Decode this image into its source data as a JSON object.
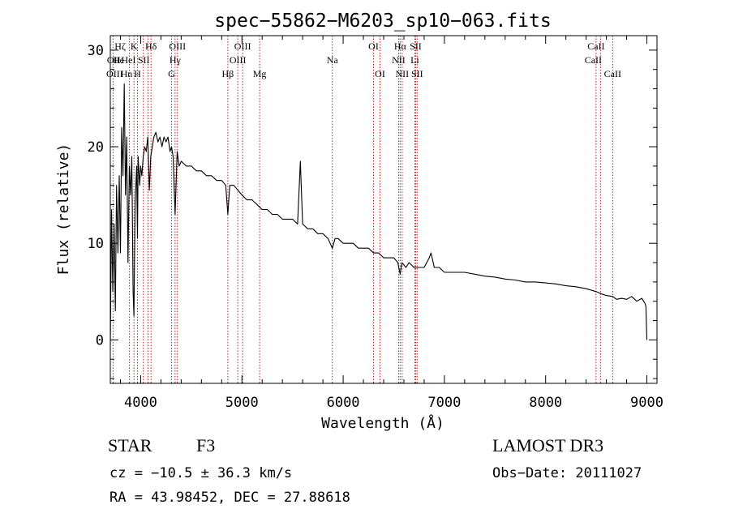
{
  "chart_data": {
    "type": "line",
    "title": "spec−55862−M6203_sp10−063.fits",
    "xlabel": "Wavelength (Å)",
    "ylabel": "Flux (relative)",
    "xlim": [
      3700,
      9100
    ],
    "ylim": [
      -4.5,
      31.5
    ],
    "xticks": [
      4000,
      5000,
      6000,
      7000,
      8000,
      9000
    ],
    "xtick_labels": [
      "4000",
      "5000",
      "6000",
      "7000",
      "8000",
      "9000"
    ],
    "xminor_step": 200,
    "yticks": [
      0,
      10,
      20,
      30
    ],
    "ytick_labels": [
      "0",
      "10",
      "20",
      "30"
    ],
    "yminor_step": 2,
    "grid": false,
    "series": [
      {
        "name": "spectrum",
        "color": "#000000",
        "x": [
          3700,
          3712,
          3725,
          3738,
          3750,
          3762,
          3775,
          3788,
          3800,
          3812,
          3825,
          3838,
          3850,
          3862,
          3875,
          3888,
          3900,
          3912,
          3925,
          3933,
          3945,
          3960,
          3968,
          3975,
          3990,
          4000,
          4012,
          4025,
          4040,
          4055,
          4070,
          4085,
          4100,
          4115,
          4130,
          4150,
          4170,
          4190,
          4210,
          4230,
          4250,
          4270,
          4290,
          4305,
          4320,
          4340,
          4360,
          4380,
          4400,
          4450,
          4500,
          4550,
          4600,
          4650,
          4700,
          4750,
          4800,
          4840,
          4861,
          4880,
          4920,
          4960,
          5000,
          5050,
          5100,
          5150,
          5200,
          5250,
          5300,
          5350,
          5400,
          5450,
          5500,
          5550,
          5577,
          5600,
          5650,
          5700,
          5750,
          5800,
          5850,
          5893,
          5920,
          5950,
          6000,
          6050,
          6100,
          6150,
          6200,
          6250,
          6300,
          6350,
          6400,
          6450,
          6500,
          6540,
          6563,
          6580,
          6620,
          6650,
          6700,
          6750,
          6800,
          6850,
          6868,
          6900,
          6950,
          7000,
          7100,
          7200,
          7300,
          7400,
          7500,
          7600,
          7700,
          7800,
          7900,
          8000,
          8100,
          8200,
          8300,
          8400,
          8500,
          8542,
          8600,
          8662,
          8700,
          8750,
          8800,
          8850,
          8900,
          8950,
          8980,
          8990,
          9000
        ],
        "values": [
          -0.5,
          13.5,
          5,
          12,
          3,
          16,
          9,
          17,
          9,
          22,
          17,
          26.5,
          15,
          21,
          8,
          18,
          15,
          19,
          5,
          2.5,
          14,
          18,
          10.5,
          19,
          16,
          18,
          17,
          19,
          20,
          19.5,
          21,
          15.5,
          19,
          20,
          21,
          21.5,
          20.5,
          21,
          20,
          21,
          20.5,
          21,
          19.5,
          20,
          19,
          13,
          19.5,
          18,
          18.5,
          18,
          18,
          17.5,
          17.5,
          17,
          17,
          16.5,
          16.5,
          16,
          13,
          16,
          16,
          15.5,
          15,
          14.5,
          14.5,
          14,
          13.5,
          13.5,
          13,
          13,
          12.5,
          12.5,
          12.5,
          12,
          18.5,
          12,
          11.5,
          11.5,
          11,
          11,
          10.5,
          9.5,
          10.5,
          10.5,
          10,
          10,
          10,
          9.5,
          9.5,
          9.5,
          9,
          9,
          8.5,
          8.5,
          8.5,
          8,
          6.8,
          8,
          7.5,
          8,
          7.5,
          7.5,
          7.5,
          8.5,
          9,
          7.5,
          7.5,
          7,
          7,
          7,
          6.8,
          6.6,
          6.5,
          6.3,
          6.2,
          6,
          6,
          5.9,
          5.8,
          5.6,
          5.5,
          5.3,
          5,
          4.8,
          4.6,
          4.5,
          4.2,
          4.3,
          4.2,
          4.5,
          4,
          4.3,
          3.8,
          3.5,
          0
        ]
      }
    ],
    "lines": [
      {
        "name": "Hdelta-dashed",
        "x": 4102
      },
      {
        "name": "OII",
        "x": 3727
      },
      {
        "name": "Hgamma",
        "x": 4340
      },
      {
        "name": "Hbeta",
        "x": 4861
      },
      {
        "name": "OIII-4959",
        "x": 4959
      },
      {
        "name": "OIII-5007",
        "x": 5007
      },
      {
        "name": "Mg",
        "x": 5175
      },
      {
        "name": "Na",
        "x": 5893
      },
      {
        "name": "OI-6300",
        "x": 6300
      },
      {
        "name": "OI-6364",
        "x": 6364
      },
      {
        "name": "NII-6548",
        "x": 6548
      },
      {
        "name": "Halpha",
        "x": 6563
      },
      {
        "name": "NII-6583",
        "x": 6583
      },
      {
        "name": "Li",
        "x": 6708
      },
      {
        "name": "SII-6716",
        "x": 6716
      },
      {
        "name": "SII-6731",
        "x": 6731
      },
      {
        "name": "CaII-8498",
        "x": 8498
      },
      {
        "name": "CaII-8542",
        "x": 8542
      },
      {
        "name": "CaII-8662",
        "x": 8662
      },
      {
        "name": "H-eps",
        "x": 3889
      },
      {
        "name": "CaK",
        "x": 3934
      },
      {
        "name": "CaH",
        "x": 3968
      },
      {
        "name": "HeI-SII",
        "x": 4026
      },
      {
        "name": "SII-4072",
        "x": 4072
      },
      {
        "name": "G-band",
        "x": 4305
      },
      {
        "name": "OIII-4363",
        "x": 4363
      }
    ],
    "line_labels": [
      {
        "text": "Hζ",
        "x": 3797,
        "row": 1
      },
      {
        "text": "OII",
        "x": 3734,
        "row": 2
      },
      {
        "text": "He",
        "x": 3780,
        "row": 2
      },
      {
        "text": "OIII",
        "x": 3743,
        "row": 3
      },
      {
        "text": "Hn",
        "x": 3860,
        "row": 3
      },
      {
        "text": "K",
        "x": 3934,
        "row": 1
      },
      {
        "text": "HeI",
        "x": 3880,
        "row": 2
      },
      {
        "text": "SII",
        "x": 4030,
        "row": 2
      },
      {
        "text": "H",
        "x": 3968,
        "row": 3
      },
      {
        "text": "Hδ",
        "x": 4102,
        "row": 1
      },
      {
        "text": "OIII",
        "x": 4363,
        "row": 1
      },
      {
        "text": "Hγ",
        "x": 4340,
        "row": 2
      },
      {
        "text": "G",
        "x": 4305,
        "row": 3
      },
      {
        "text": "OIII",
        "x": 5007,
        "row": 1
      },
      {
        "text": "OIII",
        "x": 4959,
        "row": 2
      },
      {
        "text": "Hβ",
        "x": 4861,
        "row": 3
      },
      {
        "text": "Mg",
        "x": 5175,
        "row": 3
      },
      {
        "text": "Na",
        "x": 5893,
        "row": 2
      },
      {
        "text": "OI",
        "x": 6300,
        "row": 1
      },
      {
        "text": "OI",
        "x": 6364,
        "row": 3
      },
      {
        "text": "Hα",
        "x": 6563,
        "row": 1
      },
      {
        "text": "SII",
        "x": 6716,
        "row": 1
      },
      {
        "text": "NII",
        "x": 6548,
        "row": 2
      },
      {
        "text": "Li",
        "x": 6708,
        "row": 2
      },
      {
        "text": "NII",
        "x": 6583,
        "row": 3
      },
      {
        "text": "SII",
        "x": 6731,
        "row": 3
      },
      {
        "text": "CaII",
        "x": 8498,
        "row": 1
      },
      {
        "text": "CaII",
        "x": 8470,
        "row": 2
      },
      {
        "text": "CaII",
        "x": 8662,
        "row": 3
      }
    ],
    "colors": {
      "spectrum": "#000000",
      "lines": "#b22222",
      "axes": "#000000"
    }
  },
  "footer": {
    "class_label": "STAR",
    "class_value": "F3",
    "survey": "LAMOST DR3",
    "redshift": "cz = −10.5 ± 36.3 km/s",
    "obs_date": "Obs−Date: 20111027",
    "coords": "RA =  43.98452, DEC =  27.88618"
  }
}
